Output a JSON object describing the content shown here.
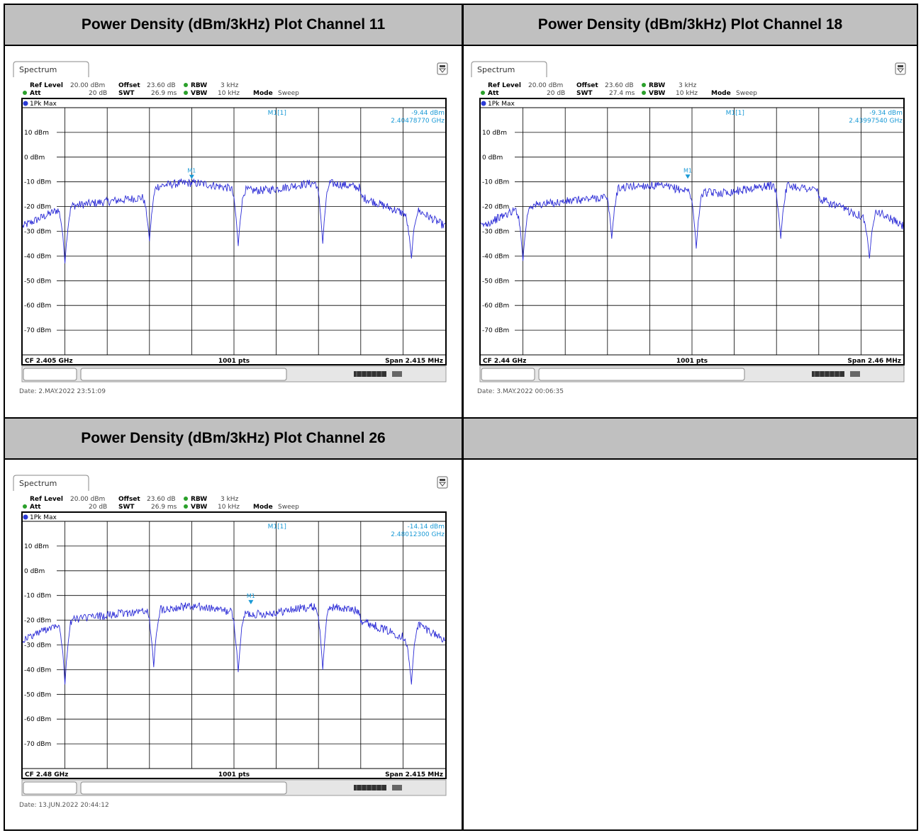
{
  "headers": [
    "Power Density (dBm/3kHz) Plot Channel 11",
    "Power Density (dBm/3kHz) Plot Channel 18",
    "Power Density (dBm/3kHz) Plot Channel 26"
  ],
  "chart_data": [
    {
      "type": "line",
      "tab": "Spectrum",
      "info_row1": {
        "ref_level_label": "Ref Level",
        "ref_level": "20.00 dBm",
        "offset_label": "Offset",
        "offset": "23.60 dB",
        "rbw_label": "RBW",
        "rbw": "3 kHz"
      },
      "info_row2": {
        "att_label": "Att",
        "att": "20 dB",
        "swt_label": "SWT",
        "swt": "26.9 ms",
        "vbw_label": "VBW",
        "vbw": "10 kHz",
        "mode_label": "Mode",
        "mode": "Sweep"
      },
      "trace_label": "1Pk Max",
      "marker": {
        "name": "M1[1]",
        "level": "-9.44 dBm",
        "freq": "2.40478770 GHz",
        "label": "M1",
        "x_frac": 0.4,
        "y_dbm": -9.44
      },
      "yticks": [
        "10 dBm",
        "0 dBm",
        "-10 dBm",
        "-20 dBm",
        "-30 dBm",
        "-40 dBm",
        "-50 dBm",
        "-60 dBm",
        "-70 dBm"
      ],
      "ylim": [
        -80,
        20
      ],
      "footer": {
        "cf": "CF 2.405 GHz",
        "pts": "1001 pts",
        "span": "Span 2.415 MHz"
      },
      "date": "Date: 2.MAY.2022  23:51:09",
      "notches": [
        {
          "x": 0.1,
          "depth": -43
        },
        {
          "x": 0.3,
          "depth": -34
        },
        {
          "x": 0.51,
          "depth": -36
        },
        {
          "x": 0.71,
          "depth": -35
        },
        {
          "x": 0.92,
          "depth": -41
        }
      ],
      "top_level": -12
    },
    {
      "type": "line",
      "tab": "Spectrum",
      "info_row1": {
        "ref_level_label": "Ref Level",
        "ref_level": "20.00 dBm",
        "offset_label": "Offset",
        "offset": "23.60 dB",
        "rbw_label": "RBW",
        "rbw": "3 kHz"
      },
      "info_row2": {
        "att_label": "Att",
        "att": "20 dB",
        "swt_label": "SWT",
        "swt": "27.4 ms",
        "vbw_label": "VBW",
        "vbw": "10 kHz",
        "mode_label": "Mode",
        "mode": "Sweep"
      },
      "trace_label": "1Pk Max",
      "marker": {
        "name": "M1[1]",
        "level": "-9.34 dBm",
        "freq": "2.43997540 GHz",
        "label": "M1",
        "x_frac": 0.49,
        "y_dbm": -9.34
      },
      "yticks": [
        "10 dBm",
        "0 dBm",
        "-10 dBm",
        "-20 dBm",
        "-30 dBm",
        "-40 dBm",
        "-50 dBm",
        "-60 dBm",
        "-70 dBm"
      ],
      "ylim": [
        -80,
        20
      ],
      "footer": {
        "cf": "CF 2.44 GHz",
        "pts": "1001 pts",
        "span": "Span 2.46 MHz"
      },
      "date": "Date: 3.MAY.2022  00:06:35",
      "notches": [
        {
          "x": 0.1,
          "depth": -42
        },
        {
          "x": 0.31,
          "depth": -33
        },
        {
          "x": 0.51,
          "depth": -37
        },
        {
          "x": 0.71,
          "depth": -33
        },
        {
          "x": 0.92,
          "depth": -41
        }
      ],
      "top_level": -13
    },
    {
      "type": "line",
      "tab": "Spectrum",
      "info_row1": {
        "ref_level_label": "Ref Level",
        "ref_level": "20.00 dBm",
        "offset_label": "Offset",
        "offset": "23.60 dB",
        "rbw_label": "RBW",
        "rbw": "3 kHz"
      },
      "info_row2": {
        "att_label": "Att",
        "att": "20 dB",
        "swt_label": "SWT",
        "swt": "26.9 ms",
        "vbw_label": "VBW",
        "vbw": "10 kHz",
        "mode_label": "Mode",
        "mode": "Sweep"
      },
      "trace_label": "1Pk Max",
      "marker": {
        "name": "M1[1]",
        "level": "-14.14 dBm",
        "freq": "2.48012300 GHz",
        "label": "M1",
        "x_frac": 0.54,
        "y_dbm": -14.14
      },
      "yticks": [
        "10 dBm",
        "0 dBm",
        "-10 dBm",
        "-20 dBm",
        "-30 dBm",
        "-40 dBm",
        "-50 dBm",
        "-60 dBm",
        "-70 dBm"
      ],
      "ylim": [
        -80,
        20
      ],
      "footer": {
        "cf": "CF 2.48 GHz",
        "pts": "1001 pts",
        "span": "Span 2.415 MHz"
      },
      "date": "Date: 13.JUN.2022  20:44:12",
      "notches": [
        {
          "x": 0.1,
          "depth": -46
        },
        {
          "x": 0.31,
          "depth": -39
        },
        {
          "x": 0.51,
          "depth": -41
        },
        {
          "x": 0.71,
          "depth": -40
        },
        {
          "x": 0.92,
          "depth": -46
        }
      ],
      "top_level": -16
    }
  ],
  "colors": {
    "trace": "#2b2bd6",
    "marker": "#1a9ad6",
    "header_bg": "#c0c0c0",
    "grid": "#000000"
  }
}
